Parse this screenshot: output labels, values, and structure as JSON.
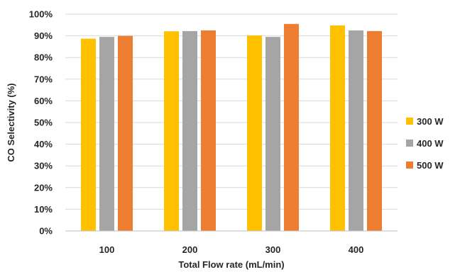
{
  "chart_data": {
    "type": "bar",
    "title": "",
    "xlabel": "Total Flow rate (mL/min)",
    "ylabel": "CO Selectivity (%)",
    "categories": [
      "100",
      "200",
      "300",
      "400"
    ],
    "ylim": [
      0,
      100
    ],
    "yticks": [
      "0%",
      "10%",
      "20%",
      "30%",
      "40%",
      "50%",
      "60%",
      "70%",
      "80%",
      "90%",
      "100%"
    ],
    "grid": "horizontal",
    "legend_position": "right",
    "series": [
      {
        "name": "300 W",
        "color": "#FFC000",
        "values": [
          88.7,
          92.1,
          90.2,
          94.8
        ]
      },
      {
        "name": "400 W",
        "color": "#A5A5A5",
        "values": [
          89.5,
          92.2,
          89.5,
          92.5
        ]
      },
      {
        "name": "500 W",
        "color": "#ED7D31",
        "values": [
          90.0,
          92.5,
          95.5,
          92.2
        ]
      }
    ]
  }
}
